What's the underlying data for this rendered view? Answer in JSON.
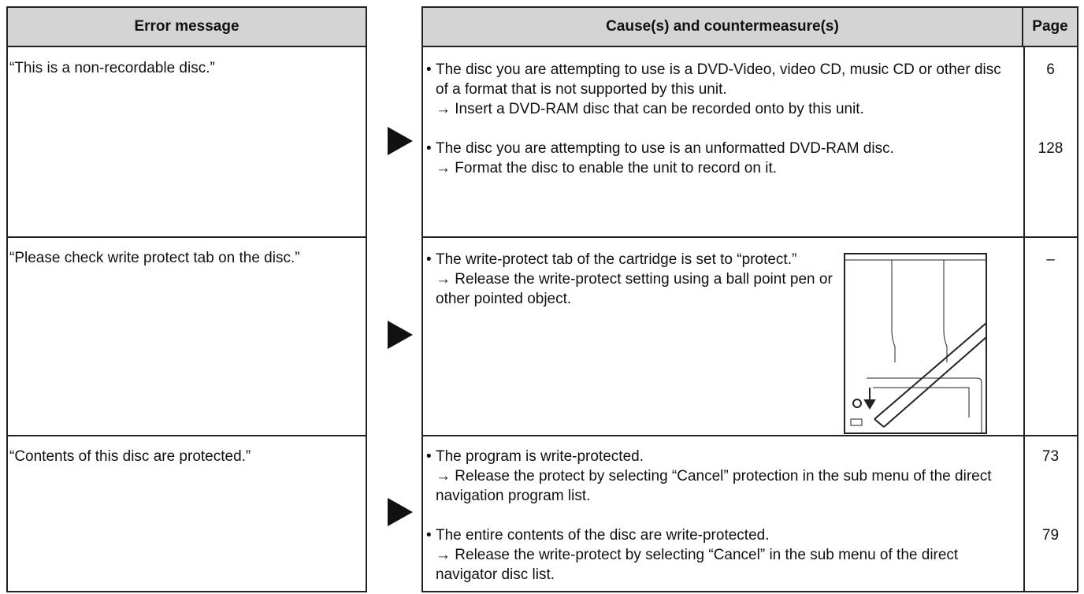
{
  "table": {
    "headers": [
      "Error message",
      "Cause(s) and countermeasure(s)",
      "Page"
    ],
    "rows": [
      {
        "message": "“This is a non-recordable disc.”",
        "causes": [
          {
            "text": "The disc you are attempting to use is a DVD-Video, video CD, music CD or other disc of a format that is not supported by this unit.",
            "remedy": "→ Insert a DVD-RAM disc that can be recorded onto by this unit.",
            "page": "6"
          },
          {
            "text": "The disc you are attempting to use is an unformatted DVD-RAM disc.",
            "remedy": "→ Format the disc to enable the unit to record on it.",
            "page": "128"
          }
        ]
      },
      {
        "message": "“Please check write protect tab on the disc.”",
        "causes": [
          {
            "text": "The write-protect tab of the cartridge is set to “protect.”",
            "remedy": "→ Release the write-protect setting using a ball point pen or other pointed object.",
            "page": "–"
          }
        ]
      },
      {
        "message": "“Contents of this disc are protected.”",
        "causes": [
          {
            "text": "The program is write-protected.",
            "remedy": "→ Release the protect by selecting “Cancel” protection in the sub menu of the direct navigation program list.",
            "page": "73"
          },
          {
            "text": "The entire contents of the disc are write-protected.",
            "remedy": "→ Release the write-protect by selecting “Cancel” in the sub menu of the direct navigator disc list.",
            "page": "79"
          }
        ]
      }
    ]
  }
}
